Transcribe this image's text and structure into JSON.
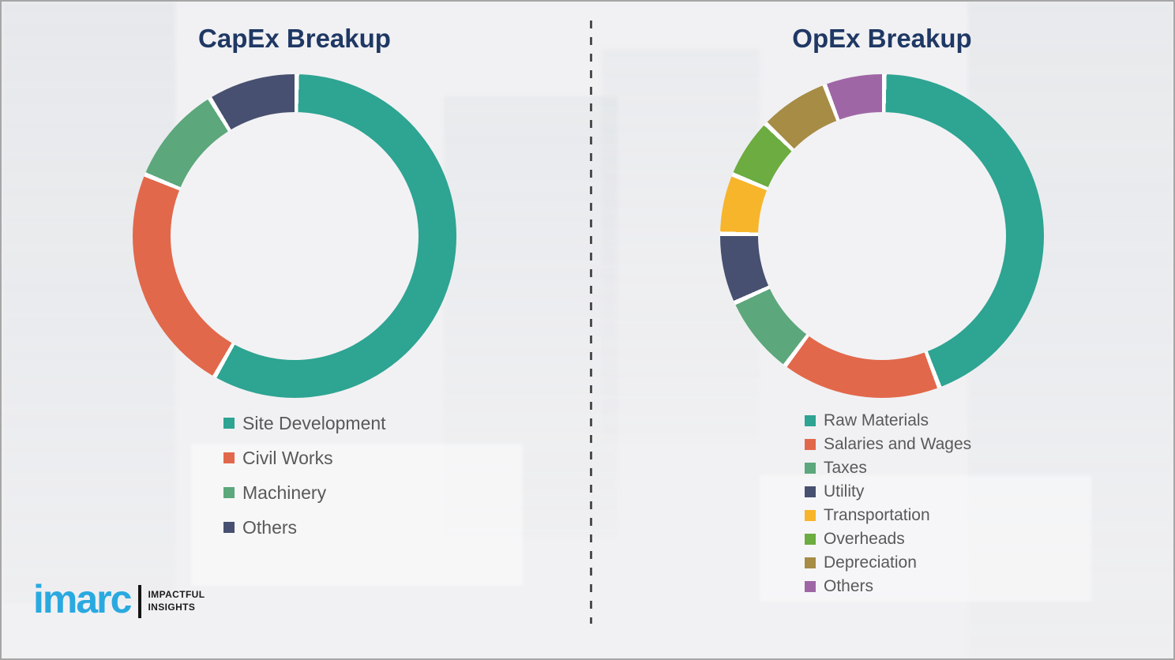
{
  "chart_data": [
    {
      "type": "pie",
      "subtype": "donut",
      "title": "CapEx Breakup",
      "categories": [
        "Site Development",
        "Civil Works",
        "Machinery",
        "Others"
      ],
      "values": [
        58,
        23,
        10,
        9
      ],
      "values_note": "percent, estimated from arc angles (no labels shown)",
      "colors": [
        "#2ea492",
        "#e2684b",
        "#5ca77c",
        "#475070"
      ],
      "start_angle_deg": 0,
      "direction": "clockwise",
      "legend_position": "bottom"
    },
    {
      "type": "pie",
      "subtype": "donut",
      "title": "OpEx Breakup",
      "categories": [
        "Raw Materials",
        "Salaries and Wages",
        "Taxes",
        "Utility",
        "Transportation",
        "Overheads",
        "Depreciation",
        "Others"
      ],
      "values": [
        44,
        16,
        8,
        7,
        6,
        6,
        7,
        6
      ],
      "values_note": "percent, estimated from arc angles (no labels shown)",
      "colors": [
        "#2ea492",
        "#e2684b",
        "#5ca77c",
        "#475070",
        "#f7b52b",
        "#6cac40",
        "#a68c45",
        "#9f66a6"
      ],
      "start_angle_deg": 0,
      "direction": "clockwise",
      "legend_position": "bottom"
    }
  ],
  "logo": {
    "brand": "imarc",
    "tagline_line1": "IMPACTFUL",
    "tagline_line2": "INSIGHTS",
    "brand_color": "#2aa9e0"
  },
  "style": {
    "title_color": "#1f3864",
    "legend_text_color": "#595959",
    "background_color": "#f1f1f3",
    "divider_color": "#4d4d4d",
    "segment_gap_color": "#ffffff"
  }
}
